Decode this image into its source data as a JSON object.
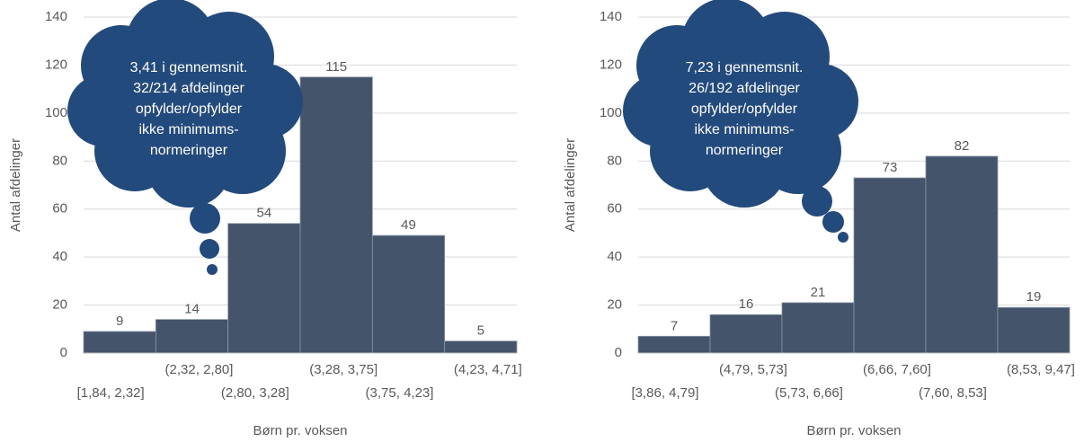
{
  "chart_data": [
    {
      "type": "bar",
      "x_label": "Børn pr. voksen",
      "y_label": "Antal afdelinger",
      "categories": [
        "[1,84, 2,32]",
        "(2,32, 2,80]",
        "(2,80, 3,28]",
        "(3,28, 3,75]",
        "(3,75, 4,23]",
        "(4,23, 4,71]"
      ],
      "values": [
        9,
        14,
        54,
        115,
        49,
        5
      ],
      "color": "#44546a",
      "ylim": [
        0,
        140
      ],
      "yticks": [
        0,
        20,
        40,
        60,
        80,
        100,
        120,
        140
      ],
      "grid": true,
      "annotation": [
        "3,41 i gennemsnit.",
        "32/214 afdelinger",
        "opfylder/opfylder",
        "ikke minimums-",
        "normeringer"
      ]
    },
    {
      "type": "bar",
      "x_label": "Børn pr. voksen",
      "y_label": "Antal afdelinger",
      "categories": [
        "[3,86, 4,79]",
        "(4,79, 5,73]",
        "(5,73, 6,66]",
        "(6,66, 7,60]",
        "(7,60, 8,53]",
        "(8,53, 9,47]"
      ],
      "values": [
        7,
        16,
        21,
        73,
        82,
        19
      ],
      "color": "#44546a",
      "ylim": [
        0,
        140
      ],
      "yticks": [
        0,
        20,
        40,
        60,
        80,
        100,
        120,
        140
      ],
      "grid": true,
      "annotation": [
        "7,23 i gennemsnit.",
        "26/192 afdelinger",
        "opfylder/opfylder",
        "ikke minimums-",
        "normeringer"
      ]
    }
  ]
}
